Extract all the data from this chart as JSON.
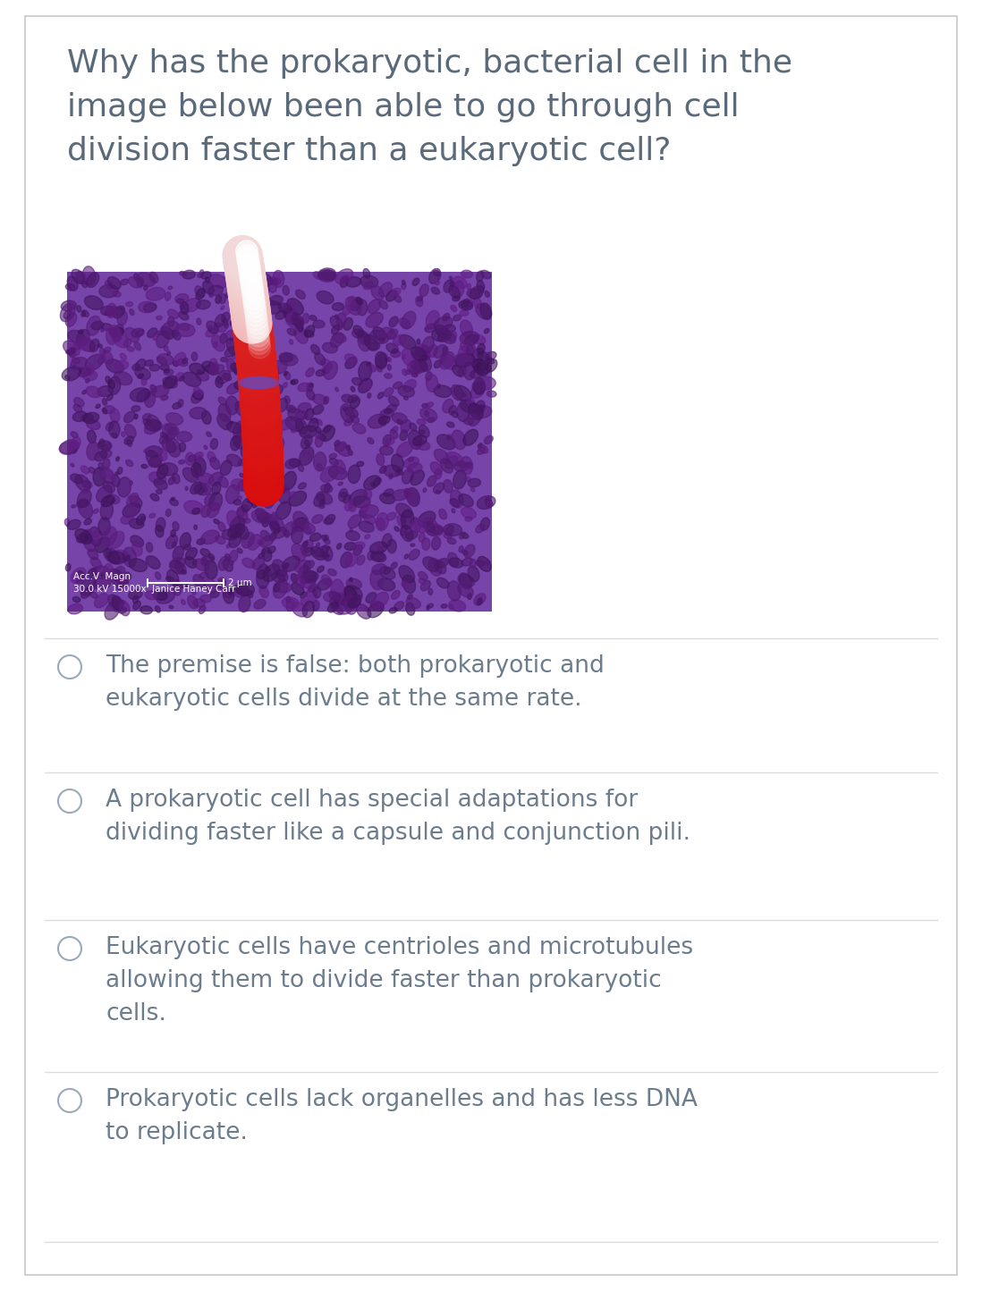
{
  "background_color": "#ffffff",
  "border_color": "#c8c8c8",
  "question": "Why has the prokaryotic, bacterial cell in the\nimage below been able to go through cell\ndivision faster than a eukaryotic cell?",
  "question_color": "#5a6a7a",
  "question_fontsize": 26,
  "answers": [
    "The premise is false: both prokaryotic and\neukaryotic cells divide at the same rate.",
    "A prokaryotic cell has special adaptations for\ndividing faster like a capsule and conjunction pili.",
    "Eukaryotic cells have centrioles and microtubules\nallowing them to divide faster than prokaryotic\ncells.",
    "Prokaryotic cells lack organelles and has less DNA\nto replicate."
  ],
  "answer_color": "#6b7c8d",
  "answer_fontsize": 19,
  "circle_color": "#9aaabb",
  "separator_color": "#dddddd",
  "image_bg_color": "#7744aa",
  "figsize": [
    10.98,
    14.44
  ],
  "dpi": 100
}
